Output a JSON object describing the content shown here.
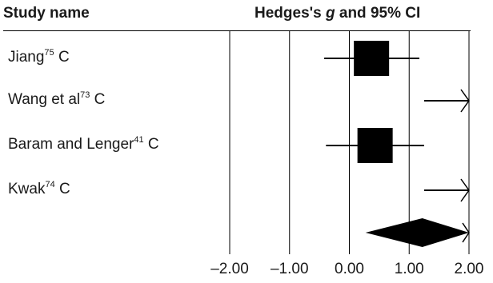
{
  "header": {
    "study_col": "Study name",
    "effect_col_prefix": "Hedges's ",
    "effect_col_italic": "g",
    "effect_col_suffix": " and 95% CI"
  },
  "studies": [
    {
      "name": "Jiang",
      "ref": "75",
      "suffix": " C"
    },
    {
      "name": "Wang et al",
      "ref": "73",
      "suffix": " C"
    },
    {
      "name": "Baram and Lenger",
      "ref": "41",
      "suffix": " C"
    },
    {
      "name": "Kwak",
      "ref": "74",
      "suffix": " C"
    }
  ],
  "chart_data": {
    "type": "forest",
    "xlim": [
      -2.0,
      2.0
    ],
    "x_ticks": [
      "–2.00",
      "–1.00",
      "0.00",
      "1.00",
      "2.00"
    ],
    "x_tick_values": [
      -2,
      -1,
      0,
      1,
      2
    ],
    "studies": [
      {
        "name": "Jiang C",
        "g": 0.37,
        "ci_low": -0.42,
        "ci_high": 1.17,
        "weight": 1.0,
        "arrow_right": false
      },
      {
        "name": "Wang et al C",
        "g": null,
        "ci_low": 1.25,
        "ci_high": 2.0,
        "weight": 0,
        "arrow_right": true
      },
      {
        "name": "Baram and Lenger C",
        "g": 0.43,
        "ci_low": -0.39,
        "ci_high": 1.25,
        "weight": 1.0,
        "arrow_right": false
      },
      {
        "name": "Kwak C",
        "g": null,
        "ci_low": 1.25,
        "ci_high": 2.0,
        "weight": 0,
        "arrow_right": true
      }
    ],
    "pooled": {
      "g": 1.22,
      "ci_low": 0.27,
      "ci_high": 2.0,
      "truncated_right": true
    },
    "colors": {
      "marker": "#000000",
      "gridline": "#000000"
    }
  }
}
